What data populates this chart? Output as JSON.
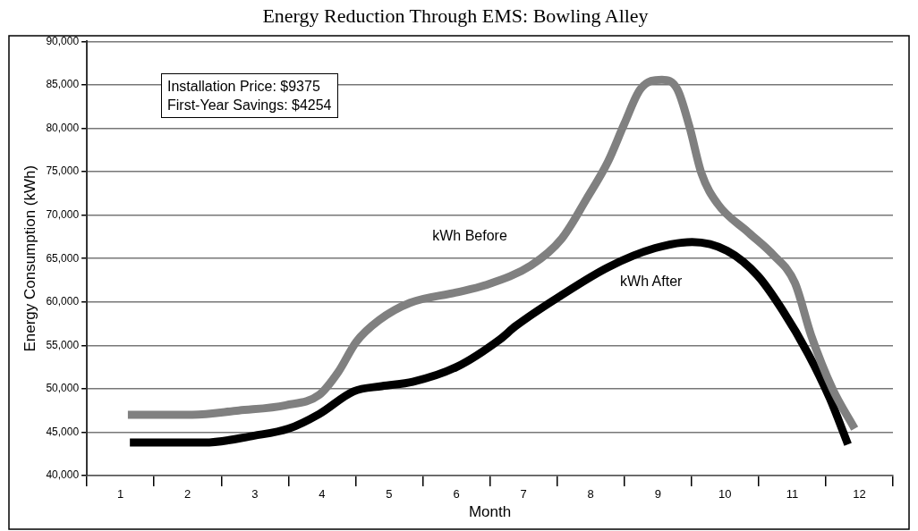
{
  "chart_data": {
    "type": "line",
    "title": "Energy Reduction Through EMS: Bowling Alley",
    "xlabel": "Month",
    "ylabel": "Energy Consumption (kWh)",
    "xlim": [
      0.5,
      12.5
    ],
    "xticks": [
      {
        "value": 0.5,
        "label": null
      },
      {
        "value": 1,
        "label": "1"
      },
      {
        "value": 1.5,
        "label": null
      },
      {
        "value": 2,
        "label": "2"
      },
      {
        "value": 2.5,
        "label": null
      },
      {
        "value": 3,
        "label": "3"
      },
      {
        "value": 3.5,
        "label": null
      },
      {
        "value": 4,
        "label": "4"
      },
      {
        "value": 4.5,
        "label": null
      },
      {
        "value": 5,
        "label": "5"
      },
      {
        "value": 5.5,
        "label": null
      },
      {
        "value": 6,
        "label": "6"
      },
      {
        "value": 6.5,
        "label": null
      },
      {
        "value": 7,
        "label": "7"
      },
      {
        "value": 7.5,
        "label": null
      },
      {
        "value": 8,
        "label": "8"
      },
      {
        "value": 8.5,
        "label": null
      },
      {
        "value": 9,
        "label": "9"
      },
      {
        "value": 9.5,
        "label": null
      },
      {
        "value": 10,
        "label": "10"
      },
      {
        "value": 10.5,
        "label": null
      },
      {
        "value": 11,
        "label": "11"
      },
      {
        "value": 11.5,
        "label": null
      },
      {
        "value": 12,
        "label": "12"
      },
      {
        "value": 12.5,
        "label": null
      }
    ],
    "ylim": [
      40000,
      90000
    ],
    "yticks": [
      {
        "value": 40000,
        "label": "40,000"
      },
      {
        "value": 45000,
        "label": "45,000"
      },
      {
        "value": 50000,
        "label": "50,000"
      },
      {
        "value": 55000,
        "label": "55,000"
      },
      {
        "value": 60000,
        "label": "60,000"
      },
      {
        "value": 65000,
        "label": "65,000"
      },
      {
        "value": 70000,
        "label": "70,000"
      },
      {
        "value": 75000,
        "label": "75,000"
      },
      {
        "value": 80000,
        "label": "80,000"
      },
      {
        "value": 85000,
        "label": "85,000"
      },
      {
        "value": 90000,
        "label": "90,000"
      }
    ],
    "grid": "y",
    "legend": false,
    "marker": "none",
    "line_style": "solid",
    "series": [
      {
        "name": "kWh Before",
        "color": "#808080",
        "x": [
          1.11,
          2.07,
          2.76,
          3.46,
          3.96,
          4.24,
          4.51,
          4.85,
          5.31,
          6.0,
          6.42,
          7.11,
          7.57,
          7.94,
          8.26,
          8.5,
          8.74,
          9.06,
          9.29,
          9.47,
          9.65,
          9.89,
          10.35,
          10.72,
          11.04,
          11.28,
          11.6,
          11.93
        ],
        "values": [
          47000,
          47000,
          47500,
          48100,
          49300,
          51900,
          55400,
          57900,
          59900,
          61100,
          61900,
          64200,
          67300,
          71900,
          76200,
          80500,
          84500,
          85600,
          84500,
          80200,
          74800,
          71300,
          68000,
          65400,
          62200,
          56200,
          50000,
          45400
        ]
      },
      {
        "name": "kWh After",
        "color": "#000000",
        "x": [
          1.14,
          2.25,
          2.99,
          3.5,
          3.96,
          4.47,
          4.89,
          5.35,
          6.0,
          6.65,
          6.88,
          7.57,
          8.26,
          8.96,
          9.51,
          10.03,
          10.49,
          10.86,
          11.24,
          11.56,
          11.83
        ],
        "values": [
          43800,
          43800,
          44600,
          45400,
          47100,
          49700,
          50300,
          50800,
          52500,
          55700,
          57200,
          60800,
          64000,
          66200,
          66900,
          65900,
          63000,
          59000,
          54000,
          48900,
          43600
        ]
      }
    ],
    "annotations": [
      "Installation Price: $9375",
      "First-Year Savings: $4254"
    ]
  }
}
